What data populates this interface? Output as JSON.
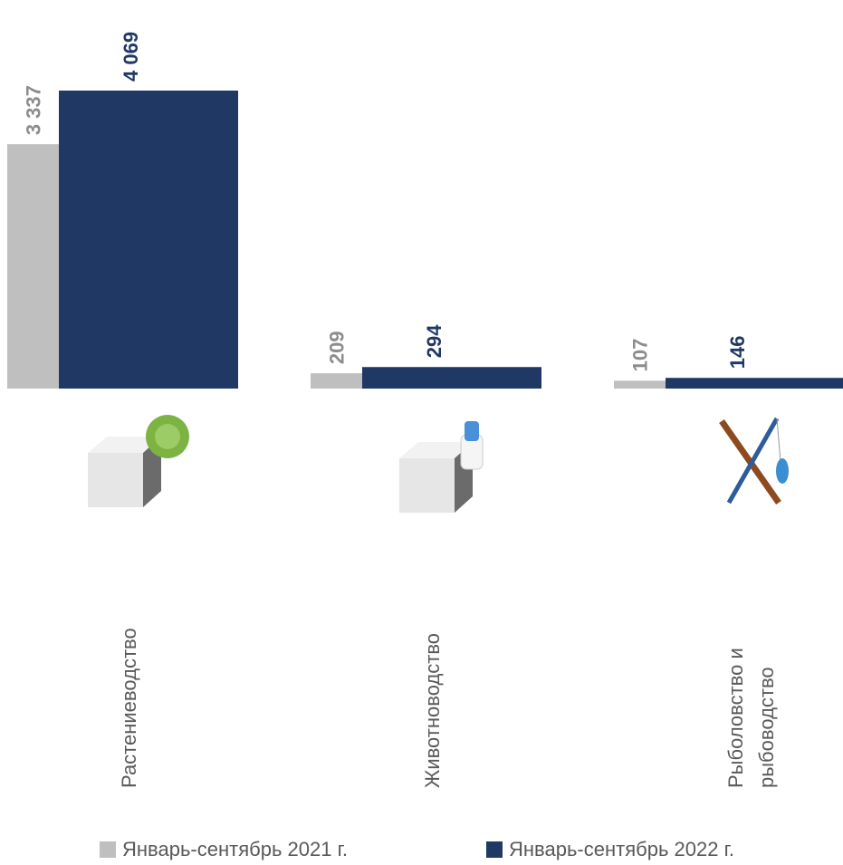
{
  "chart_data": {
    "type": "bar",
    "categories": [
      "Растениеводство",
      "Животноводство",
      "Рыболовство и рыбоводство"
    ],
    "series": [
      {
        "name": "Январь-сентябрь 2021 г.",
        "color": "#bfbfbf",
        "label_color": "#8c8c8c",
        "values": [
          3337,
          209,
          107
        ],
        "value_labels": [
          "3 337",
          "209",
          "107"
        ]
      },
      {
        "name": "Январь-сентябрь 2022 г.",
        "color": "#203864",
        "label_color": "#203864",
        "values": [
          4069,
          294,
          146
        ],
        "value_labels": [
          "4 069",
          "294",
          "146"
        ]
      }
    ]
  }
}
